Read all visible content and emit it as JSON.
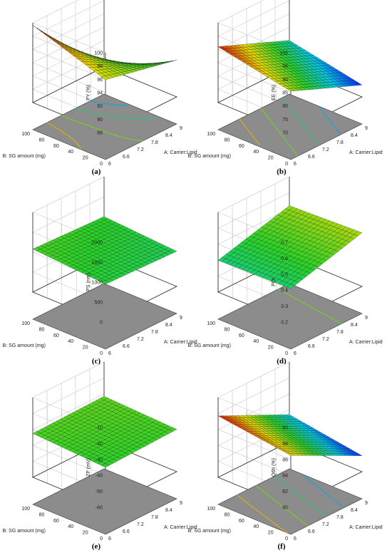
{
  "chart_data": [
    {
      "type": "surface3d",
      "caption": "(a)",
      "zlabel": "PY (%)",
      "xlabel": "A: Carrier:Lipid",
      "ylabel": "B: SG amount (mg)",
      "x_ticks": [
        "6",
        "6.6",
        "7.2",
        "7.8",
        "8.4",
        "9"
      ],
      "y_ticks": [
        "0",
        "20",
        "40",
        "60",
        "80",
        "100"
      ],
      "z_ticks": [
        "88",
        "90",
        "92",
        "94",
        "96",
        "98",
        "100"
      ],
      "xlim": [
        6,
        9
      ],
      "ylim": [
        0,
        100
      ],
      "zlim": [
        87,
        100
      ],
      "corners": {
        "x6_y0": 95.6,
        "x9_y0": 93.0,
        "x6_y100": 99.6,
        "x9_y100": 86.2
      },
      "color_range": [
        86.2,
        99.6
      ]
    },
    {
      "type": "surface3d",
      "caption": "(b)",
      "zlabel": "EE (%)",
      "xlabel": "A: Carrier:Lipid",
      "ylabel": "B: SG amount (mg)",
      "x_ticks": [
        "6",
        "6.6",
        "7.2",
        "7.8",
        "8.4",
        "9"
      ],
      "y_ticks": [
        "0",
        "20",
        "40",
        "60",
        "80",
        "100"
      ],
      "z_ticks": [
        "70",
        "75",
        "80",
        "85",
        "90",
        "95",
        "100"
      ],
      "xlim": [
        6,
        9
      ],
      "ylim": [
        0,
        100
      ],
      "zlim": [
        70,
        100
      ],
      "corners": {
        "x6_y0": 85.5,
        "x9_y0": 74.5,
        "x6_y100": 91.0,
        "x9_y100": 80.0
      },
      "color_range": [
        74.5,
        91.0
      ]
    },
    {
      "type": "surface3d",
      "caption": "(c)",
      "zlabel": "PS (nm)",
      "xlabel": "A: Carrier:Lipid",
      "ylabel": "B: SG amount (mg)",
      "x_ticks": [
        "6",
        "6.6",
        "7.2",
        "7.8",
        "8.4",
        "9"
      ],
      "y_ticks": [
        "0",
        "20",
        "40",
        "60",
        "80",
        "100"
      ],
      "z_ticks": [
        "0",
        "500",
        "1000",
        "1500",
        "2000"
      ],
      "xlim": [
        6,
        9
      ],
      "ylim": [
        0,
        100
      ],
      "zlim": [
        0,
        2000
      ],
      "corners": {
        "x6_y0": 950,
        "x9_y0": 880,
        "x6_y100": 1080,
        "x9_y100": 1000
      },
      "color_range": [
        0,
        2000
      ]
    },
    {
      "type": "surface3d",
      "caption": "(d)",
      "zlabel": "PDI",
      "xlabel": "A: Carrier:Lipid",
      "ylabel": "B: SG amount (mg)",
      "x_ticks": [
        "6",
        "6.6",
        "7.2",
        "7.8",
        "8.4",
        "9"
      ],
      "y_ticks": [
        "0",
        "20",
        "40",
        "60",
        "80",
        "100"
      ],
      "z_ticks": [
        "0.2",
        "0.3",
        "0.4",
        "0.5",
        "0.6",
        "0.7"
      ],
      "xlim": [
        6,
        9
      ],
      "ylim": [
        0,
        100
      ],
      "zlim": [
        0.15,
        0.7
      ],
      "corners": {
        "x6_y0": 0.38,
        "x9_y0": 0.52,
        "x6_y100": 0.37,
        "x9_y100": 0.5
      },
      "color_range": [
        0.15,
        0.7
      ]
    },
    {
      "type": "surface3d",
      "caption": "(e)",
      "zlabel": "ZP (mV)",
      "xlabel": "A: Carrier:Lipid",
      "ylabel": "B: SG amount (mg)",
      "x_ticks": [
        "6",
        "6.6",
        "7.2",
        "7.8",
        "8.4",
        "9"
      ],
      "y_ticks": [
        "0",
        "20",
        "40",
        "60",
        "80",
        "100"
      ],
      "z_ticks": [
        "-60",
        "-50",
        "-40",
        "-30",
        "-20",
        "-10"
      ],
      "xlim": [
        6,
        9
      ],
      "ylim": [
        0,
        100
      ],
      "zlim": [
        -60,
        -10
      ],
      "corners": {
        "x6_y0": -35.0,
        "x9_y0": -33.5,
        "x6_y100": -32.5,
        "x9_y100": -31.5
      },
      "color_range": [
        -60,
        -10
      ]
    },
    {
      "type": "surface3d",
      "caption": "(f)",
      "zlabel": "Q6h (%)",
      "xlabel": "A: Carrier:Lipid",
      "ylabel": "B: SG amount (mg)",
      "x_ticks": [
        "6",
        "6.6",
        "7.2",
        "7.8",
        "8.4",
        "9"
      ],
      "y_ticks": [
        "0",
        "20",
        "40",
        "60",
        "80",
        "100"
      ],
      "z_ticks": [
        "80",
        "82",
        "84",
        "86",
        "88",
        "90"
      ],
      "xlim": [
        6,
        9
      ],
      "ylim": [
        0,
        100
      ],
      "zlim": [
        80,
        90
      ],
      "corners": {
        "x6_y0": 86.5,
        "x9_y0": 82.0,
        "x6_y100": 87.7,
        "x9_y100": 83.4
      },
      "color_range": [
        82.0,
        87.7
      ]
    }
  ]
}
